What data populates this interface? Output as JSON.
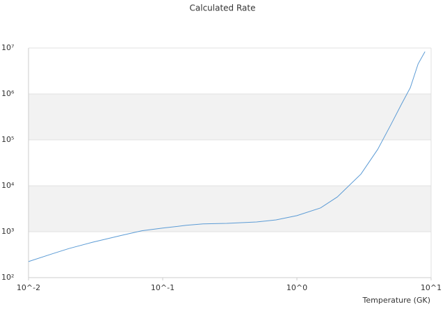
{
  "chart_data": {
    "type": "line",
    "title": "Calculated Rate",
    "x_label": "Temperature (GK)",
    "xscale": "log",
    "yscale": "log",
    "grid": "alternate-bands",
    "xlim": [
      0.01,
      10
    ],
    "ylim": [
      100,
      10000000
    ],
    "xticks": [
      {
        "value": 0.01,
        "label": "10^-2"
      },
      {
        "value": 0.1,
        "label": "10^-1"
      },
      {
        "value": 1,
        "label": "10^0"
      },
      {
        "value": 10,
        "label": "10^1"
      }
    ],
    "yticks": [
      {
        "value": 100,
        "label": "10²"
      },
      {
        "value": 1000,
        "label": "10³"
      },
      {
        "value": 10000,
        "label": "10⁴"
      },
      {
        "value": 100000,
        "label": "10⁵"
      },
      {
        "value": 1000000,
        "label": "10⁶"
      },
      {
        "value": 10000000,
        "label": "10⁷"
      }
    ],
    "x": [
      0.01,
      0.015,
      0.02,
      0.03,
      0.05,
      0.07,
      0.1,
      0.15,
      0.2,
      0.3,
      0.5,
      0.7,
      1.0,
      1.5,
      2.0,
      3.0,
      4.0,
      5.0,
      6.0,
      7.0,
      8.0,
      9.0
    ],
    "series": [
      {
        "color": "#5b9bd5",
        "values": [
          224,
          330,
          430,
          590,
          840,
          1050,
          1200,
          1380,
          1480,
          1520,
          1630,
          1810,
          2240,
          3300,
          5700,
          18000,
          62000,
          210000,
          590000,
          1370000,
          4500000,
          8300000
        ]
      }
    ]
  }
}
